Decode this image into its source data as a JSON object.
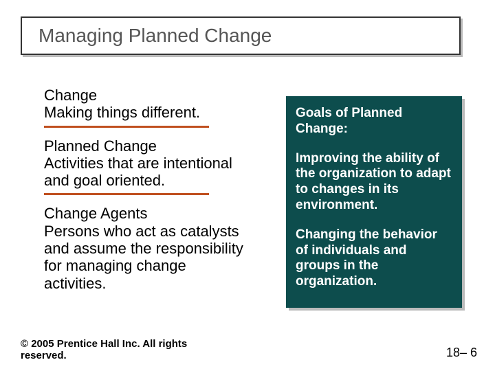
{
  "title": "Managing Planned Change",
  "definitions": [
    {
      "term": "Change",
      "desc": "Making things different."
    },
    {
      "term": "Planned Change",
      "desc": "Activities that are intentional and goal oriented."
    },
    {
      "term": "Change Agents",
      "desc": "Persons who act as catalysts and assume the responsibility for managing change activities."
    }
  ],
  "goals": {
    "heading": "Goals of Planned Change:",
    "items": [
      "Improving the ability of the organization to adapt to changes in its environment.",
      "Changing the behavior of individuals and groups in the organization."
    ]
  },
  "copyright": "© 2005 Prentice Hall Inc. All rights reserved.",
  "pagenum": "18– 6",
  "colors": {
    "accent_rule": "#c05020",
    "panel_bg": "#0d4d4d",
    "panel_text": "#ffffff",
    "title_text": "#555555",
    "shadow": "#bbbbbb"
  }
}
